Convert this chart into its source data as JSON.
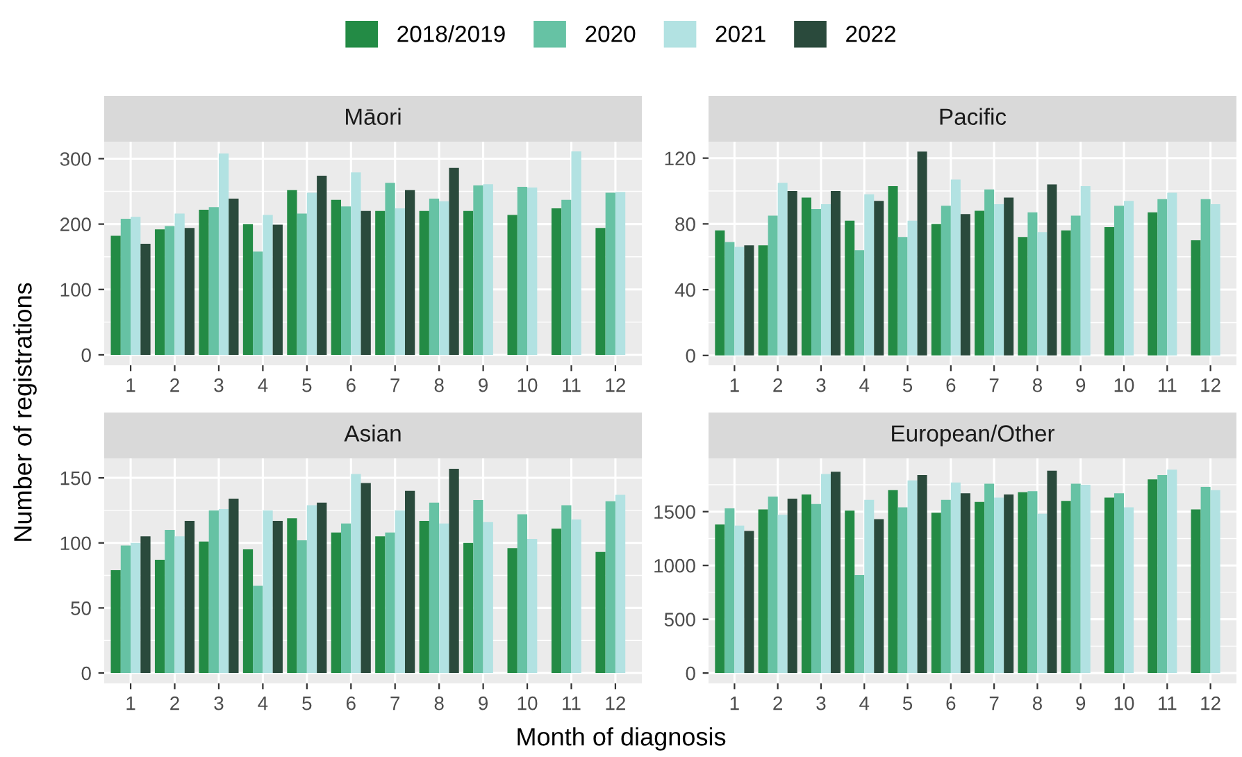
{
  "chart_data": [
    {
      "type": "bar",
      "title": "Māori",
      "ylabel": "Number of registrations",
      "legend": "top",
      "grid": true,
      "categories": [
        "1",
        "2",
        "3",
        "4",
        "5",
        "6",
        "7",
        "8",
        "9",
        "10",
        "11",
        "12"
      ],
      "ylim": [
        -16,
        326
      ],
      "yticks": [
        0,
        100,
        200,
        300
      ],
      "series": [
        {
          "name": "2018/2019",
          "color": "#238b45",
          "values": [
            182,
            192,
            222,
            200,
            252,
            237,
            220,
            220,
            220,
            214,
            224,
            194
          ]
        },
        {
          "name": "2020",
          "color": "#66c2a4",
          "values": [
            208,
            197,
            226,
            158,
            216,
            227,
            263,
            239,
            259,
            257,
            237,
            248
          ]
        },
        {
          "name": "2021",
          "color": "#b2e2e2",
          "values": [
            211,
            216,
            308,
            214,
            248,
            279,
            224,
            235,
            261,
            256,
            311,
            249
          ]
        },
        {
          "name": "2022",
          "color": "#2a4a3c",
          "values": [
            170,
            194,
            239,
            199,
            274,
            220,
            252,
            286,
            null,
            null,
            null,
            null
          ]
        }
      ]
    },
    {
      "type": "bar",
      "title": "Pacific",
      "grid": true,
      "categories": [
        "1",
        "2",
        "3",
        "4",
        "5",
        "6",
        "7",
        "8",
        "9",
        "10",
        "11",
        "12"
      ],
      "ylim": [
        -6,
        130
      ],
      "yticks": [
        0,
        40,
        80,
        120
      ],
      "series": [
        {
          "color": "#238b45",
          "values": [
            76,
            67,
            96,
            82,
            103,
            80,
            88,
            72,
            76,
            78,
            87,
            70
          ]
        },
        {
          "color": "#66c2a4",
          "values": [
            69,
            85,
            89,
            64,
            72,
            91,
            101,
            87,
            85,
            91,
            95,
            95
          ]
        },
        {
          "color": "#b2e2e2",
          "values": [
            66,
            105,
            92,
            98,
            82,
            107,
            92,
            75,
            103,
            94,
            99,
            92
          ]
        },
        {
          "color": "#2a4a3c",
          "values": [
            67,
            100,
            100,
            94,
            124,
            86,
            96,
            104,
            null,
            null,
            null,
            null
          ]
        }
      ]
    },
    {
      "type": "bar",
      "title": "Asian",
      "xlabel": "Month of diagnosis",
      "grid": true,
      "categories": [
        "1",
        "2",
        "3",
        "4",
        "5",
        "6",
        "7",
        "8",
        "9",
        "10",
        "11",
        "12"
      ],
      "ylim": [
        -8,
        165
      ],
      "yticks": [
        0,
        50,
        100,
        150
      ],
      "series": [
        {
          "color": "#238b45",
          "values": [
            79,
            87,
            101,
            95,
            119,
            108,
            105,
            117,
            100,
            96,
            111,
            93
          ]
        },
        {
          "color": "#66c2a4",
          "values": [
            98,
            110,
            125,
            67,
            102,
            115,
            108,
            131,
            133,
            122,
            129,
            132
          ]
        },
        {
          "color": "#b2e2e2",
          "values": [
            100,
            105,
            126,
            125,
            129,
            153,
            125,
            115,
            116,
            103,
            118,
            137
          ]
        },
        {
          "color": "#2a4a3c",
          "values": [
            105,
            117,
            134,
            117,
            131,
            146,
            140,
            157,
            null,
            null,
            null,
            null
          ]
        }
      ]
    },
    {
      "type": "bar",
      "title": "European/Other",
      "grid": true,
      "categories": [
        "1",
        "2",
        "3",
        "4",
        "5",
        "6",
        "7",
        "8",
        "9",
        "10",
        "11",
        "12"
      ],
      "ylim": [
        -96,
        1995
      ],
      "yticks": [
        0,
        500,
        1000,
        1500
      ],
      "series": [
        {
          "color": "#238b45",
          "values": [
            1380,
            1520,
            1660,
            1510,
            1700,
            1490,
            1590,
            1680,
            1600,
            1630,
            1800,
            1520
          ]
        },
        {
          "color": "#66c2a4",
          "values": [
            1530,
            1640,
            1570,
            910,
            1540,
            1610,
            1760,
            1690,
            1760,
            1670,
            1840,
            1730
          ]
        },
        {
          "color": "#b2e2e2",
          "values": [
            1370,
            1470,
            1850,
            1610,
            1790,
            1770,
            1630,
            1480,
            1750,
            1540,
            1890,
            1700
          ]
        },
        {
          "color": "#2a4a3c",
          "values": [
            1320,
            1620,
            1870,
            1430,
            1840,
            1670,
            1660,
            1880,
            null,
            null,
            null,
            null
          ]
        }
      ]
    }
  ]
}
